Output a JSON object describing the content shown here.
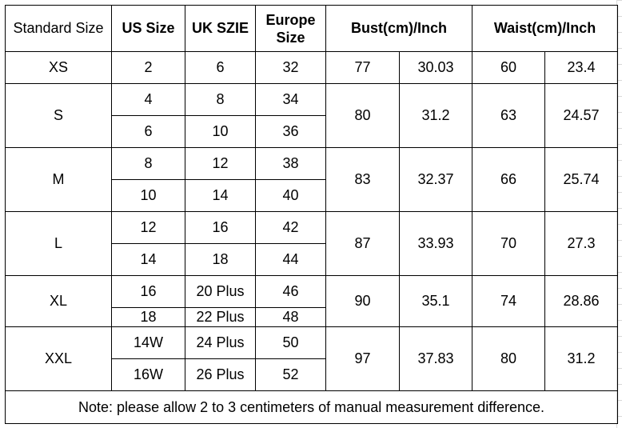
{
  "headers": {
    "standard": "Standard Size",
    "us": "US Size",
    "uk": "UK SZIE",
    "europe": "Europe Size",
    "bust": "Bust(cm)/Inch",
    "waist": "Waist(cm)/Inch"
  },
  "rows": [
    {
      "standard": "XS",
      "sub": [
        {
          "us": "2",
          "uk": "6",
          "eu": "32"
        }
      ],
      "bust_cm": "77",
      "bust_in": "30.03",
      "waist_cm": "60",
      "waist_in": "23.4"
    },
    {
      "standard": "S",
      "sub": [
        {
          "us": "4",
          "uk": "8",
          "eu": "34"
        },
        {
          "us": "6",
          "uk": "10",
          "eu": "36"
        }
      ],
      "bust_cm": "80",
      "bust_in": "31.2",
      "waist_cm": "63",
      "waist_in": "24.57"
    },
    {
      "standard": "M",
      "sub": [
        {
          "us": "8",
          "uk": "12",
          "eu": "38"
        },
        {
          "us": "10",
          "uk": "14",
          "eu": "40"
        }
      ],
      "bust_cm": "83",
      "bust_in": "32.37",
      "waist_cm": "66",
      "waist_in": "25.74"
    },
    {
      "standard": "L",
      "sub": [
        {
          "us": "12",
          "uk": "16",
          "eu": "42"
        },
        {
          "us": "14",
          "uk": "18",
          "eu": "44"
        }
      ],
      "bust_cm": "87",
      "bust_in": "33.93",
      "waist_cm": "70",
      "waist_in": "27.3"
    },
    {
      "standard": "XL",
      "sub": [
        {
          "us": "16",
          "uk": "20 Plus",
          "eu": "46"
        },
        {
          "us": "18",
          "uk": "22 Plus",
          "eu": "48"
        }
      ],
      "bust_cm": "90",
      "bust_in": "35.1",
      "waist_cm": "74",
      "waist_in": "28.86"
    },
    {
      "standard": "XXL",
      "sub": [
        {
          "us": "14W",
          "uk": "24 Plus",
          "eu": "50"
        },
        {
          "us": "16W",
          "uk": "26 Plus",
          "eu": "52"
        }
      ],
      "bust_cm": "97",
      "bust_in": "37.83",
      "waist_cm": "80",
      "waist_in": "31.2"
    }
  ],
  "note": "Note: please allow 2 to 3 centimeters of manual measurement difference."
}
